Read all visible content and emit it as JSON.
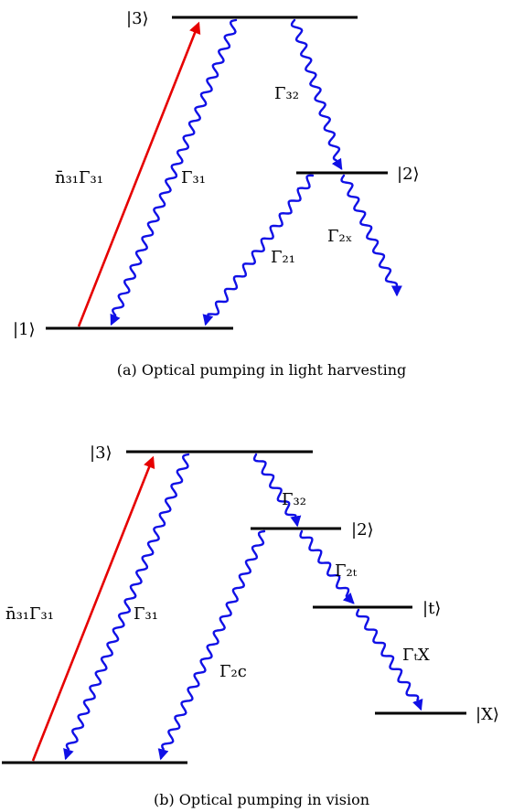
{
  "panel_a": {
    "levels": {
      "l3": "|3⟩",
      "l2": "|2⟩",
      "l1": "|1⟩"
    },
    "rates": {
      "pump": "n̄₃₁Γ₃₁",
      "g31": "Γ₃₁",
      "g32": "Γ₃₂",
      "g21": "Γ₂₁",
      "g2x": "Γ₂ₓ"
    },
    "caption": "(a) Optical pumping in light harvesting"
  },
  "panel_b": {
    "levels": {
      "l3": "|3⟩",
      "l2": "|2⟩",
      "lt": "|t⟩",
      "lx": "|X⟩"
    },
    "rates": {
      "pump": "n̄₃₁Γ₃₁",
      "g31": "Γ₃₁",
      "g32": "Γ₃₂",
      "g2t": "Γ₂ₜ",
      "g2c": "Γ₂c",
      "gtx": "ΓₜX"
    },
    "caption": "(b) Optical pumping in vision"
  },
  "colors": {
    "pump": "#e60000",
    "decay": "#1010e6",
    "level": "#000000"
  }
}
